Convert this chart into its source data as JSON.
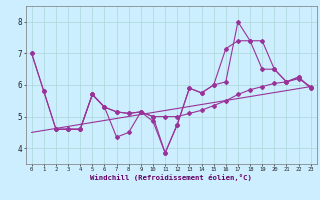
{
  "xlabel": "Windchill (Refroidissement éolien,°C)",
  "xlim": [
    -0.5,
    23.5
  ],
  "ylim": [
    3.5,
    8.5
  ],
  "yticks": [
    4,
    5,
    6,
    7,
    8
  ],
  "xticks": [
    0,
    1,
    2,
    3,
    4,
    5,
    6,
    7,
    8,
    9,
    10,
    11,
    12,
    13,
    14,
    15,
    16,
    17,
    18,
    19,
    20,
    21,
    22,
    23
  ],
  "bg_color": "#cceeff",
  "line_color": "#993399",
  "grid_color": "#aad8d8",
  "lines": [
    {
      "x": [
        0,
        1,
        2,
        3,
        4,
        5,
        6,
        7,
        8,
        9,
        10,
        11,
        12,
        13,
        14,
        15,
        16,
        17,
        18,
        19,
        20,
        21,
        22,
        23
      ],
      "y": [
        7.0,
        5.8,
        4.6,
        4.6,
        4.6,
        5.7,
        5.3,
        4.35,
        4.5,
        5.15,
        4.85,
        3.85,
        4.75,
        5.9,
        5.75,
        6.0,
        6.1,
        8.0,
        7.4,
        7.4,
        6.5,
        6.1,
        6.25,
        5.9
      ]
    },
    {
      "x": [
        0,
        1,
        2,
        3,
        4,
        5,
        6,
        7,
        8,
        9,
        10,
        11,
        12,
        13,
        14,
        15,
        16,
        17,
        18,
        19,
        20,
        21,
        22,
        23
      ],
      "y": [
        7.0,
        5.8,
        4.6,
        4.6,
        4.6,
        5.7,
        5.3,
        5.15,
        5.1,
        5.15,
        5.0,
        5.0,
        5.0,
        5.1,
        5.2,
        5.35,
        5.5,
        5.7,
        5.85,
        5.95,
        6.05,
        6.1,
        6.2,
        5.95
      ]
    },
    {
      "x": [
        2,
        3,
        4,
        5,
        6,
        7,
        8,
        9,
        10,
        11,
        12,
        13,
        14,
        15,
        16,
        17,
        18,
        19,
        20,
        21,
        22,
        23
      ],
      "y": [
        4.6,
        4.6,
        4.6,
        5.7,
        5.3,
        5.15,
        5.1,
        5.15,
        5.0,
        3.85,
        4.75,
        5.9,
        5.75,
        6.0,
        7.15,
        7.4,
        7.4,
        6.5,
        6.5,
        6.1,
        6.25,
        5.9
      ]
    },
    {
      "x": [
        0,
        23
      ],
      "y": [
        4.5,
        5.95
      ]
    }
  ]
}
